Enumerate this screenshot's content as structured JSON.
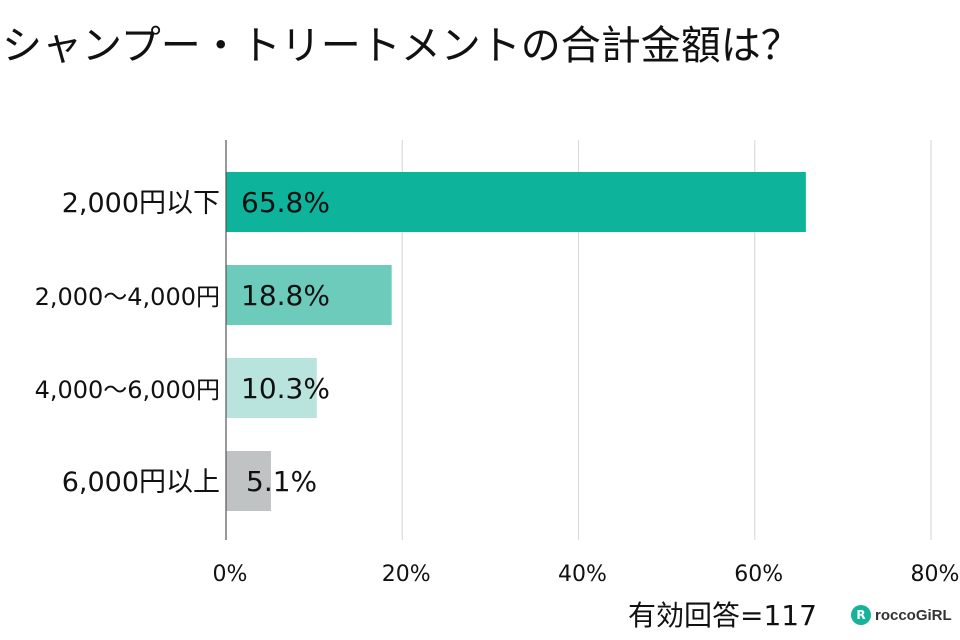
{
  "chart_data": {
    "type": "bar",
    "orientation": "horizontal",
    "title": "シャンプー・トリートメントの合計金額は？",
    "categories": [
      "2,000円以下",
      "2,000〜4,000円",
      "4,000〜6,000円",
      "6,000円以上"
    ],
    "values": [
      65.8,
      18.8,
      10.3,
      5.1
    ],
    "value_labels": [
      "65.8%",
      "18.8%",
      "10.3%",
      "5.1%"
    ],
    "colors": [
      "#0db39a",
      "#6ccbbb",
      "#b9e4dd",
      "#bfc3c3"
    ],
    "xlim": [
      0,
      80
    ],
    "xticks": [
      0,
      20,
      40,
      60,
      80
    ],
    "xtick_labels": [
      "0%",
      "20%",
      "40%",
      "60%",
      "80%"
    ],
    "grid": true,
    "footer": "有効回答=117"
  },
  "logo": {
    "icon": "R",
    "text": "roccoGiRL"
  }
}
